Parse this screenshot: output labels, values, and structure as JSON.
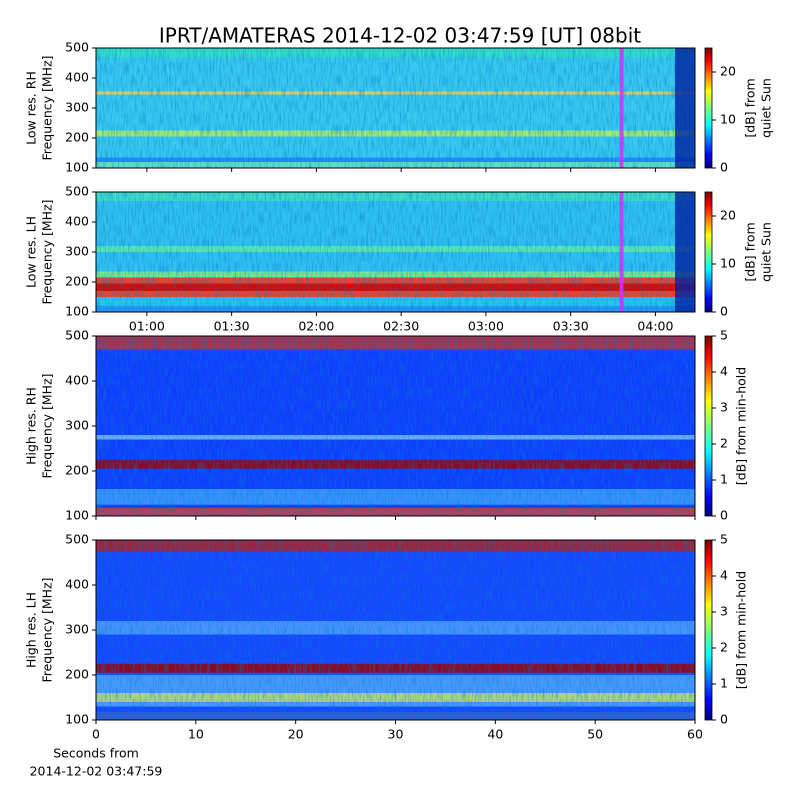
{
  "chart_data": [
    {
      "type": "heatmap",
      "title": "IPRT/AMATERAS 2014-12-02 03:47:59 [UT]   08bit",
      "ylabel": [
        "Low res. RH",
        "Frequency [MHz]"
      ],
      "xlim": [
        "00:42",
        "04:14"
      ],
      "xticks": [
        "01:00",
        "01:30",
        "02:00",
        "02:30",
        "03:00",
        "03:30",
        "04:00"
      ],
      "xtick_labels": false,
      "ylim": [
        100,
        500
      ],
      "yticks": [
        100,
        200,
        300,
        400,
        500
      ],
      "clim": [
        0,
        25
      ],
      "cticks": [
        0,
        10,
        20
      ],
      "colorbar_label": [
        "[dB] from",
        "quiet Sun"
      ],
      "colormap": "jet",
      "highlight_x": "03:48",
      "highlight_color": "#cc33ff"
    },
    {
      "type": "heatmap",
      "ylabel": [
        "Low res. LH",
        "Frequency [MHz]"
      ],
      "xlim": [
        "00:42",
        "04:14"
      ],
      "xticks": [
        "01:00",
        "01:30",
        "02:00",
        "02:30",
        "03:00",
        "03:30",
        "04:00"
      ],
      "xtick_labels": true,
      "ylim": [
        100,
        500
      ],
      "yticks": [
        100,
        200,
        300,
        400,
        500
      ],
      "clim": [
        0,
        25
      ],
      "cticks": [
        0,
        10,
        20
      ],
      "colorbar_label": [
        "[dB] from",
        "quiet Sun"
      ],
      "colormap": "jet",
      "highlight_x": "03:48",
      "highlight_color": "#cc33ff"
    },
    {
      "type": "heatmap",
      "ylabel": [
        "High res. RH",
        "Frequency [MHz]"
      ],
      "xlim": [
        0,
        60
      ],
      "xticks": [
        0,
        10,
        20,
        30,
        40,
        50,
        60
      ],
      "xtick_labels": false,
      "ylim": [
        100,
        500
      ],
      "yticks": [
        100,
        200,
        300,
        400,
        500
      ],
      "clim": [
        0,
        5
      ],
      "cticks": [
        0,
        1,
        2,
        3,
        4,
        5
      ],
      "colorbar_label": [
        "[dB] from min-hold"
      ],
      "colormap": "jet"
    },
    {
      "type": "heatmap",
      "ylabel": [
        "High res. LH",
        "Frequency [MHz]"
      ],
      "xlabel": [
        "Seconds from",
        "2014-12-02 03:47:59"
      ],
      "xlim": [
        0,
        60
      ],
      "xticks": [
        0,
        10,
        20,
        30,
        40,
        50,
        60
      ],
      "xtick_labels": true,
      "ylim": [
        100,
        500
      ],
      "yticks": [
        100,
        200,
        300,
        400,
        500
      ],
      "clim": [
        0,
        5
      ],
      "cticks": [
        0,
        1,
        2,
        3,
        4,
        5
      ],
      "colorbar_label": [
        "[dB] from min-hold"
      ],
      "colormap": "jet"
    }
  ]
}
